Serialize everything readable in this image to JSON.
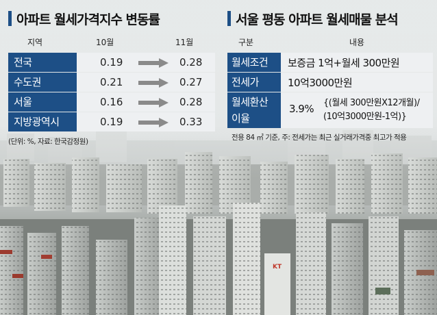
{
  "left": {
    "title": "아파트 월세가격지수 변동률",
    "headers": {
      "region": "지역",
      "oct": "10월",
      "nov": "11월"
    },
    "rows": [
      {
        "region": "전국",
        "oct": "0.19",
        "nov": "0.28"
      },
      {
        "region": "수도권",
        "oct": "0.21",
        "nov": "0.27"
      },
      {
        "region": "서울",
        "oct": "0.16",
        "nov": "0.28"
      },
      {
        "region": "지방광역시",
        "oct": "0.19",
        "nov": "0.33"
      }
    ],
    "note": "(단위: %, 자료: 한국감정원)"
  },
  "right": {
    "title": "서울 평동 아파트 월세매물 분석",
    "headers": {
      "category": "구분",
      "content": "내용"
    },
    "rows": [
      {
        "category": "월세조건",
        "content": "보증금 1억+월세 300만원"
      },
      {
        "category": "전세가",
        "content": "10억3000만원"
      }
    ],
    "conversion": {
      "label_line1": "월세환산",
      "label_line2": "이율",
      "rate": "3.9%",
      "formula_line1": "{(월세 300만원X12개월)/",
      "formula_line2": "(10억3000만원-1억)}"
    },
    "note": "전용 84 ㎡ 기준, 주: 전세가는 최근 실거래가격중 최고가 적용"
  },
  "colors": {
    "accent": "#1d4f86",
    "arrow": "#8a8a8a",
    "row_bg": "#eef0f2"
  },
  "photo": {
    "building_sign": "KT"
  }
}
